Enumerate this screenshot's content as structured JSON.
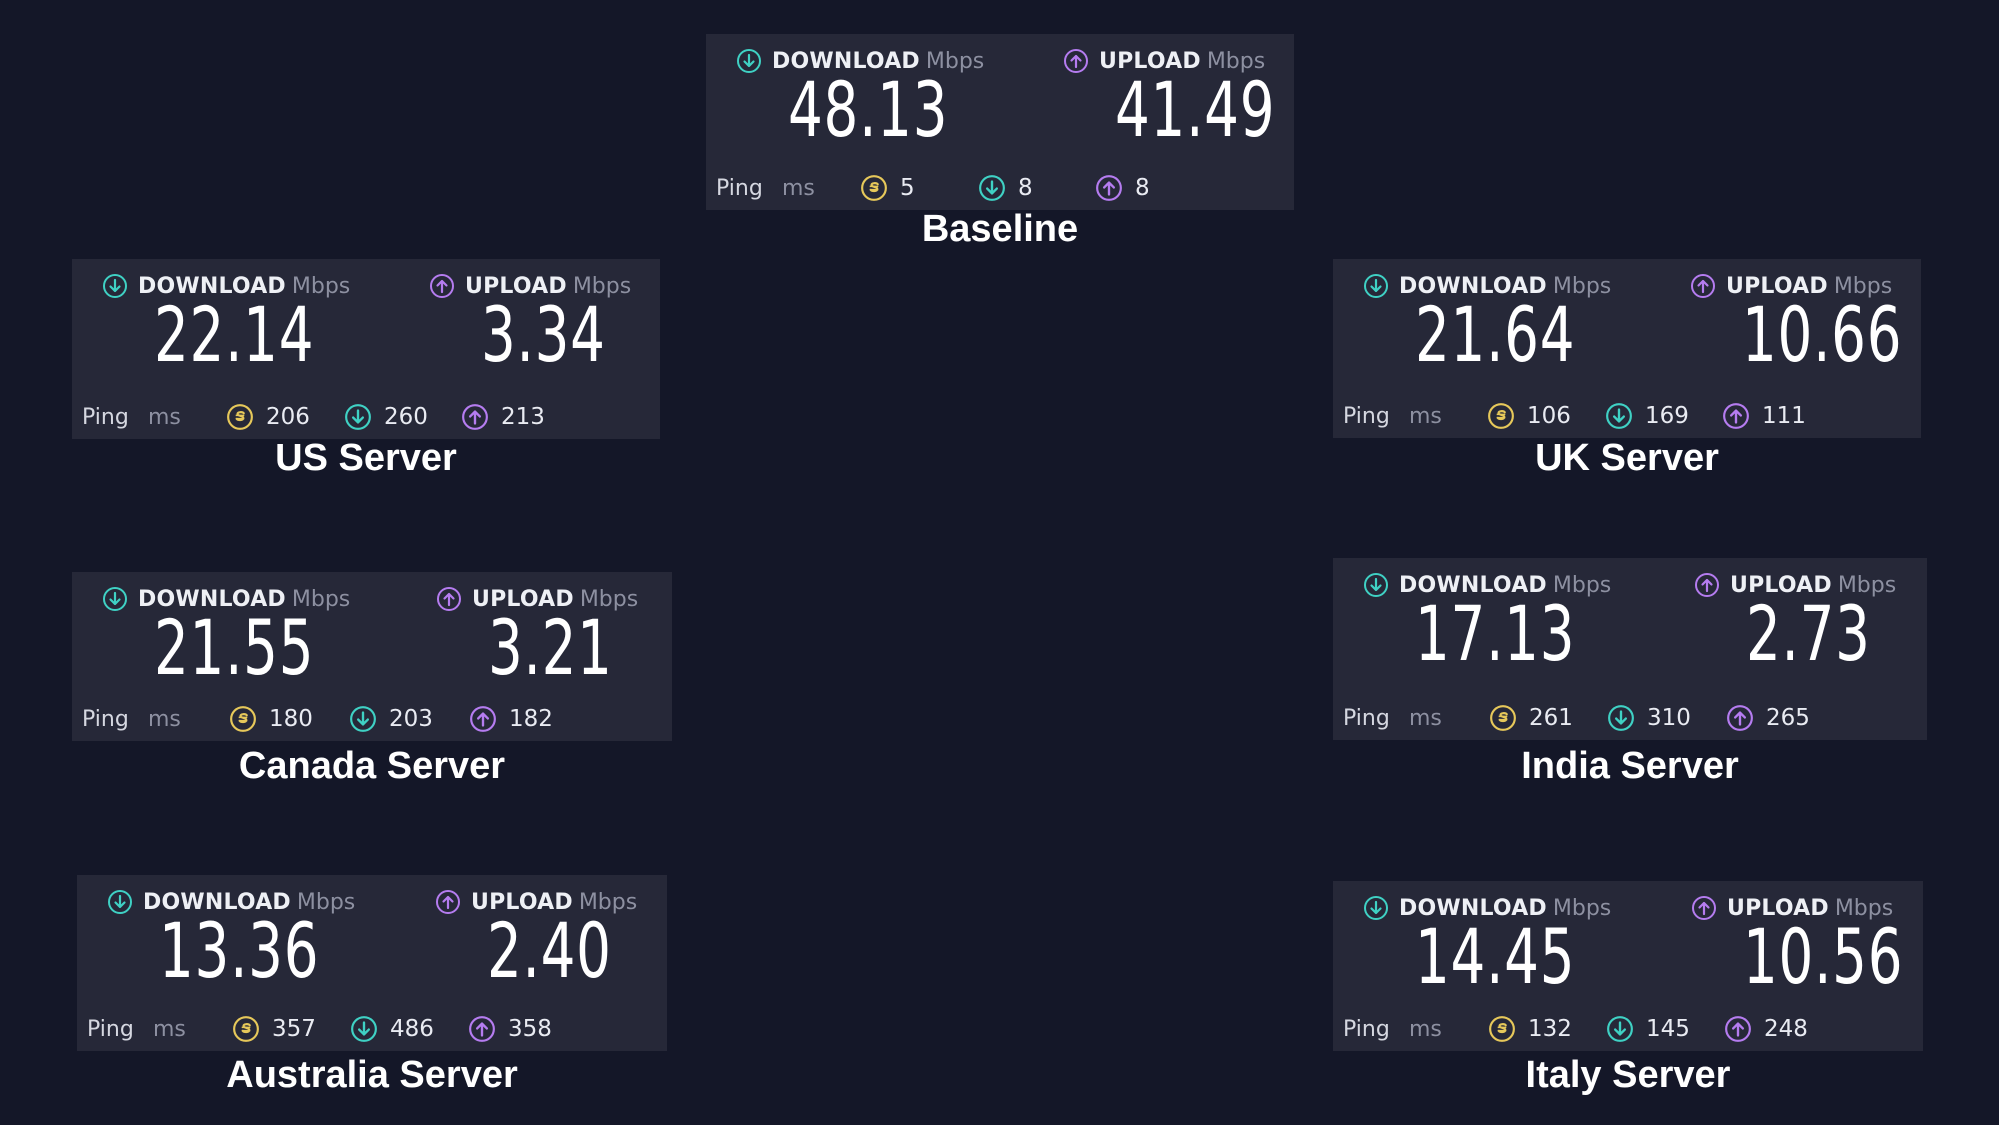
{
  "labels": {
    "download": "DOWNLOAD",
    "upload": "UPLOAD",
    "mbps": "Mbps",
    "ping": "Ping",
    "ms": "ms"
  },
  "colors": {
    "background": "#141728",
    "card": "#262838",
    "download_icon": "#3fd1c4",
    "upload_icon": "#b57cf0",
    "ping_icon": "#e6c85a"
  },
  "icons": {
    "download": "arrow-down-circle-icon",
    "upload": "arrow-up-circle-icon",
    "ping": "jitter-circle-icon"
  },
  "tests": {
    "baseline": {
      "caption": "Baseline",
      "download": "48.13",
      "upload": "41.49",
      "ping": "5",
      "ping_down": "8",
      "ping_up": "8"
    },
    "us": {
      "caption": "US Server",
      "download": "22.14",
      "upload": "3.34",
      "ping": "206",
      "ping_down": "260",
      "ping_up": "213"
    },
    "uk": {
      "caption": "UK Server",
      "download": "21.64",
      "upload": "10.66",
      "ping": "106",
      "ping_down": "169",
      "ping_up": "111"
    },
    "canada": {
      "caption": "Canada Server",
      "download": "21.55",
      "upload": "3.21",
      "ping": "180",
      "ping_down": "203",
      "ping_up": "182"
    },
    "india": {
      "caption": "India Server",
      "download": "17.13",
      "upload": "2.73",
      "ping": "261",
      "ping_down": "310",
      "ping_up": "265"
    },
    "australia": {
      "caption": "Australia Server",
      "download": "13.36",
      "upload": "2.40",
      "ping": "357",
      "ping_down": "486",
      "ping_up": "358"
    },
    "italy": {
      "caption": "Italy Server",
      "download": "14.45",
      "upload": "10.56",
      "ping": "132",
      "ping_down": "145",
      "ping_up": "248"
    }
  }
}
